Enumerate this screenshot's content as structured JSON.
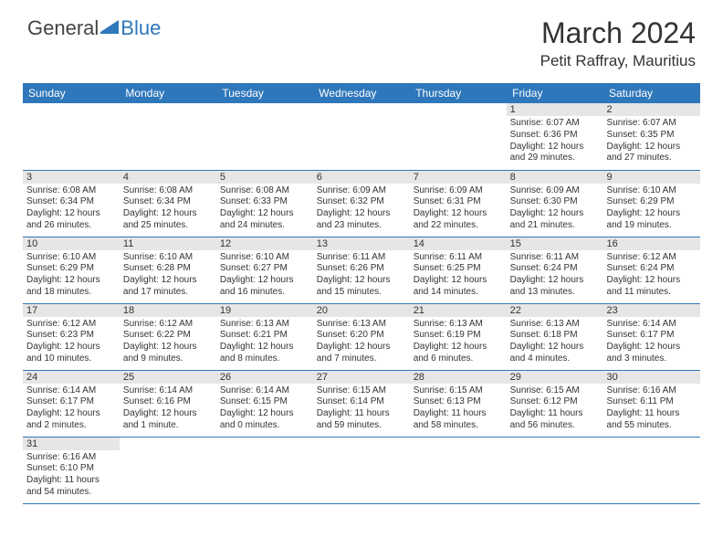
{
  "logo": {
    "general": "General",
    "blue": "Blue"
  },
  "title": "March 2024",
  "location": "Petit Raffray, Mauritius",
  "colors": {
    "header_bg": "#2f77bb",
    "header_text": "#ffffff",
    "daynum_bg": "#e6e6e6",
    "border": "#2f77bb",
    "text": "#333333",
    "logo_blue": "#2f77bb"
  },
  "weekdays": [
    "Sunday",
    "Monday",
    "Tuesday",
    "Wednesday",
    "Thursday",
    "Friday",
    "Saturday"
  ],
  "weeks": [
    [
      null,
      null,
      null,
      null,
      null,
      {
        "d": "1",
        "sr": "6:07 AM",
        "ss": "6:36 PM",
        "dl": "12 hours and 29 minutes."
      },
      {
        "d": "2",
        "sr": "6:07 AM",
        "ss": "6:35 PM",
        "dl": "12 hours and 27 minutes."
      }
    ],
    [
      {
        "d": "3",
        "sr": "6:08 AM",
        "ss": "6:34 PM",
        "dl": "12 hours and 26 minutes."
      },
      {
        "d": "4",
        "sr": "6:08 AM",
        "ss": "6:34 PM",
        "dl": "12 hours and 25 minutes."
      },
      {
        "d": "5",
        "sr": "6:08 AM",
        "ss": "6:33 PM",
        "dl": "12 hours and 24 minutes."
      },
      {
        "d": "6",
        "sr": "6:09 AM",
        "ss": "6:32 PM",
        "dl": "12 hours and 23 minutes."
      },
      {
        "d": "7",
        "sr": "6:09 AM",
        "ss": "6:31 PM",
        "dl": "12 hours and 22 minutes."
      },
      {
        "d": "8",
        "sr": "6:09 AM",
        "ss": "6:30 PM",
        "dl": "12 hours and 21 minutes."
      },
      {
        "d": "9",
        "sr": "6:10 AM",
        "ss": "6:29 PM",
        "dl": "12 hours and 19 minutes."
      }
    ],
    [
      {
        "d": "10",
        "sr": "6:10 AM",
        "ss": "6:29 PM",
        "dl": "12 hours and 18 minutes."
      },
      {
        "d": "11",
        "sr": "6:10 AM",
        "ss": "6:28 PM",
        "dl": "12 hours and 17 minutes."
      },
      {
        "d": "12",
        "sr": "6:10 AM",
        "ss": "6:27 PM",
        "dl": "12 hours and 16 minutes."
      },
      {
        "d": "13",
        "sr": "6:11 AM",
        "ss": "6:26 PM",
        "dl": "12 hours and 15 minutes."
      },
      {
        "d": "14",
        "sr": "6:11 AM",
        "ss": "6:25 PM",
        "dl": "12 hours and 14 minutes."
      },
      {
        "d": "15",
        "sr": "6:11 AM",
        "ss": "6:24 PM",
        "dl": "12 hours and 13 minutes."
      },
      {
        "d": "16",
        "sr": "6:12 AM",
        "ss": "6:24 PM",
        "dl": "12 hours and 11 minutes."
      }
    ],
    [
      {
        "d": "17",
        "sr": "6:12 AM",
        "ss": "6:23 PM",
        "dl": "12 hours and 10 minutes."
      },
      {
        "d": "18",
        "sr": "6:12 AM",
        "ss": "6:22 PM",
        "dl": "12 hours and 9 minutes."
      },
      {
        "d": "19",
        "sr": "6:13 AM",
        "ss": "6:21 PM",
        "dl": "12 hours and 8 minutes."
      },
      {
        "d": "20",
        "sr": "6:13 AM",
        "ss": "6:20 PM",
        "dl": "12 hours and 7 minutes."
      },
      {
        "d": "21",
        "sr": "6:13 AM",
        "ss": "6:19 PM",
        "dl": "12 hours and 6 minutes."
      },
      {
        "d": "22",
        "sr": "6:13 AM",
        "ss": "6:18 PM",
        "dl": "12 hours and 4 minutes."
      },
      {
        "d": "23",
        "sr": "6:14 AM",
        "ss": "6:17 PM",
        "dl": "12 hours and 3 minutes."
      }
    ],
    [
      {
        "d": "24",
        "sr": "6:14 AM",
        "ss": "6:17 PM",
        "dl": "12 hours and 2 minutes."
      },
      {
        "d": "25",
        "sr": "6:14 AM",
        "ss": "6:16 PM",
        "dl": "12 hours and 1 minute."
      },
      {
        "d": "26",
        "sr": "6:14 AM",
        "ss": "6:15 PM",
        "dl": "12 hours and 0 minutes."
      },
      {
        "d": "27",
        "sr": "6:15 AM",
        "ss": "6:14 PM",
        "dl": "11 hours and 59 minutes."
      },
      {
        "d": "28",
        "sr": "6:15 AM",
        "ss": "6:13 PM",
        "dl": "11 hours and 58 minutes."
      },
      {
        "d": "29",
        "sr": "6:15 AM",
        "ss": "6:12 PM",
        "dl": "11 hours and 56 minutes."
      },
      {
        "d": "30",
        "sr": "6:16 AM",
        "ss": "6:11 PM",
        "dl": "11 hours and 55 minutes."
      }
    ],
    [
      {
        "d": "31",
        "sr": "6:16 AM",
        "ss": "6:10 PM",
        "dl": "11 hours and 54 minutes."
      },
      null,
      null,
      null,
      null,
      null,
      null
    ]
  ],
  "labels": {
    "sunrise": "Sunrise: ",
    "sunset": "Sunset: ",
    "daylight": "Daylight: "
  }
}
